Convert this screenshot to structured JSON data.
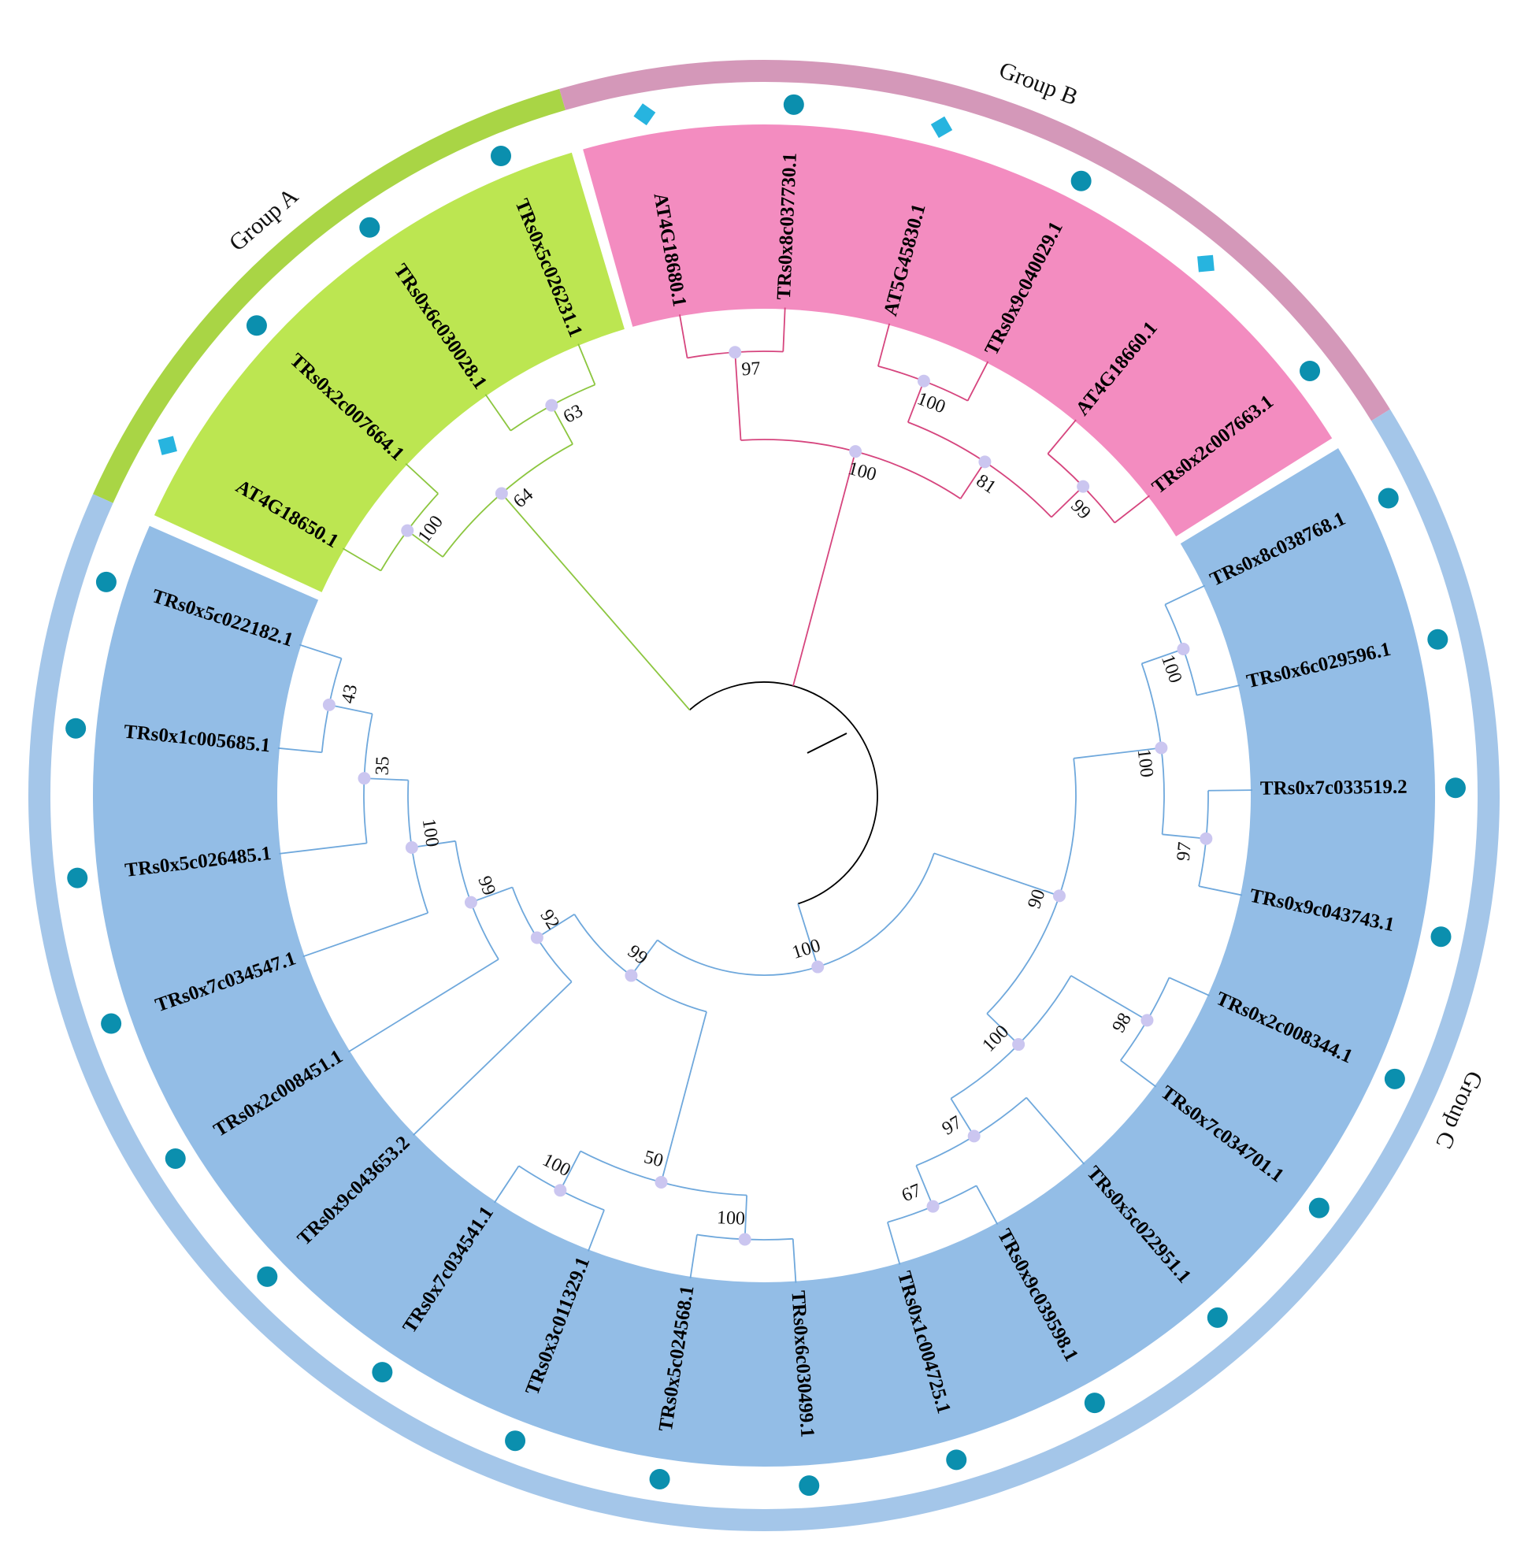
{
  "groups": [
    {
      "name": "Group A",
      "sector_color": "#bce651",
      "ring_color": "#a9d545",
      "branch_color": "#8cc63f",
      "clade": {
        "support": 64,
        "children": [
          {
            "support": 100,
            "children": [
              {
                "label": "AT4G18650.1",
                "marker": "square"
              },
              {
                "label": "TRs0x2c007664.1",
                "marker": "circle"
              }
            ]
          },
          {
            "support": 63,
            "children": [
              {
                "label": "TRs0x6c030028.1",
                "marker": "circle"
              },
              {
                "label": "TRs0x5c026231.1",
                "marker": "circle"
              }
            ]
          }
        ]
      }
    },
    {
      "name": "Group B",
      "sector_color": "#f38cc0",
      "ring_color": "#d498b9",
      "branch_color": "#d6457e",
      "clade": {
        "support": 100,
        "children": [
          {
            "support": 97,
            "children": [
              {
                "label": "AT4G18680.1",
                "marker": "square"
              },
              {
                "label": "TRs0x8c037730.1",
                "marker": "circle"
              }
            ]
          },
          {
            "support": 81,
            "children": [
              {
                "support": 100,
                "children": [
                  {
                    "label": "AT5G45830.1",
                    "marker": "square"
                  },
                  {
                    "label": "TRs0x9c040029.1",
                    "marker": "circle"
                  }
                ]
              },
              {
                "support": 99,
                "children": [
                  {
                    "label": "AT4G18660.1",
                    "marker": "square"
                  },
                  {
                    "label": "TRs0x2c007663.1",
                    "marker": "circle"
                  }
                ]
              }
            ]
          }
        ]
      }
    },
    {
      "name": "Group C",
      "sector_color": "#93bde6",
      "ring_color": "#a4c6e9",
      "branch_color": "#6fa8dc",
      "clade": {
        "support": 100,
        "children": [
          {
            "support": 90,
            "children": [
              {
                "support": 100,
                "children": [
                  {
                    "support": 100,
                    "children": [
                      {
                        "label": "TRs0x8c038768.1",
                        "marker": "circle"
                      },
                      {
                        "label": "TRs0x6c029596.1",
                        "marker": "circle"
                      }
                    ]
                  },
                  {
                    "support": 97,
                    "children": [
                      {
                        "label": "TRs0x7c033519.2",
                        "marker": "circle"
                      },
                      {
                        "label": "TRs0x9c043743.1",
                        "marker": "circle"
                      }
                    ]
                  }
                ]
              },
              {
                "support": 100,
                "children": [
                  {
                    "support": 98,
                    "children": [
                      {
                        "label": "TRs0x2c008344.1",
                        "marker": "circle"
                      },
                      {
                        "label": "TRs0x7c034701.1",
                        "marker": "circle"
                      }
                    ]
                  },
                  {
                    "support": 97,
                    "children": [
                      {
                        "label": "TRs0x5c022951.1",
                        "marker": "circle"
                      },
                      {
                        "support": 67,
                        "children": [
                          {
                            "label": "TRs0x9c039598.1",
                            "marker": "circle"
                          },
                          {
                            "label": "TRs0x1c004725.1",
                            "marker": "circle"
                          }
                        ]
                      }
                    ]
                  }
                ]
              }
            ]
          },
          {
            "support": 99,
            "children": [
              {
                "support": 50,
                "children": [
                  {
                    "support": 100,
                    "children": [
                      {
                        "label": "TRs0x6c030499.1",
                        "marker": "circle"
                      },
                      {
                        "label": "TRs0x5c024568.1",
                        "marker": "circle"
                      }
                    ]
                  },
                  {
                    "support": 100,
                    "children": [
                      {
                        "label": "TRs0x3c011329.1",
                        "marker": "circle"
                      },
                      {
                        "label": "TRs0x7c034541.1",
                        "marker": "circle"
                      }
                    ]
                  }
                ]
              },
              {
                "support": 92,
                "children": [
                  {
                    "label": "TRs0x9c043653.2",
                    "marker": "circle"
                  },
                  {
                    "support": 99,
                    "children": [
                      {
                        "label": "TRs0x2c008451.1",
                        "marker": "circle"
                      },
                      {
                        "support": 100,
                        "children": [
                          {
                            "label": "TRs0x7c034547.1",
                            "marker": "circle"
                          },
                          {
                            "support": 35,
                            "children": [
                              {
                                "label": "TRs0x5c026485.1",
                                "marker": "circle"
                              },
                              {
                                "support": 43,
                                "children": [
                                  {
                                    "label": "TRs0x1c005685.1",
                                    "marker": "circle"
                                  },
                                  {
                                    "label": "TRs0x5c022182.1",
                                    "marker": "circle"
                                  }
                                ]
                              }
                            ]
                          }
                        ]
                      }
                    ]
                  }
                ]
              }
            ]
          }
        ]
      }
    }
  ]
}
